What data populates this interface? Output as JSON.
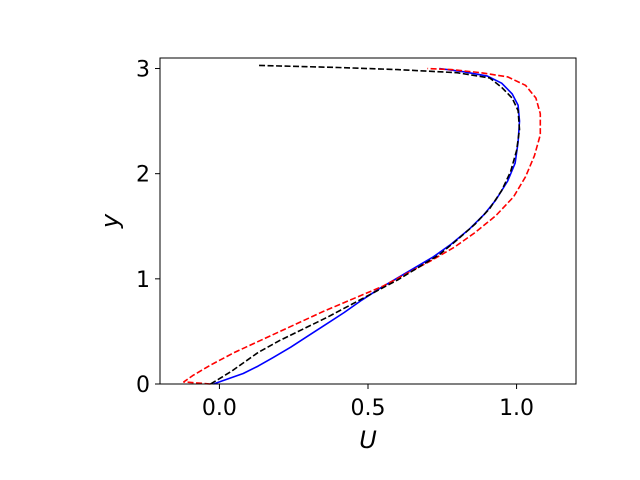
{
  "chart_data": {
    "type": "line",
    "title": "",
    "xlabel": "U",
    "ylabel": "y",
    "xlim": [
      -0.2,
      1.2
    ],
    "ylim": [
      0,
      3.1
    ],
    "grid": false,
    "legend": "none",
    "xticks": [
      {
        "value": 0.0,
        "label": "0.0"
      },
      {
        "value": 0.5,
        "label": "0.5"
      },
      {
        "value": 1.0,
        "label": "1.0"
      }
    ],
    "yticks": [
      {
        "value": 0,
        "label": "0"
      },
      {
        "value": 1,
        "label": "1"
      },
      {
        "value": 2,
        "label": "2"
      },
      {
        "value": 3,
        "label": "3"
      }
    ],
    "series": [
      {
        "color": "#0000ff",
        "dash": "solid",
        "points": [
          [
            -0.02,
            0.0
          ],
          [
            0.03,
            0.05
          ],
          [
            0.08,
            0.1
          ],
          [
            0.13,
            0.17
          ],
          [
            0.18,
            0.25
          ],
          [
            0.24,
            0.35
          ],
          [
            0.3,
            0.46
          ],
          [
            0.36,
            0.57
          ],
          [
            0.42,
            0.68
          ],
          [
            0.48,
            0.8
          ],
          [
            0.54,
            0.91
          ],
          [
            0.6,
            1.01
          ],
          [
            0.66,
            1.11
          ],
          [
            0.72,
            1.21
          ],
          [
            0.78,
            1.33
          ],
          [
            0.84,
            1.47
          ],
          [
            0.89,
            1.61
          ],
          [
            0.93,
            1.75
          ],
          [
            0.97,
            1.93
          ],
          [
            0.995,
            2.1
          ],
          [
            1.005,
            2.3
          ],
          [
            1.01,
            2.5
          ],
          [
            1.005,
            2.65
          ],
          [
            0.985,
            2.76
          ],
          [
            0.95,
            2.86
          ],
          [
            0.9,
            2.93
          ],
          [
            0.82,
            2.97
          ],
          [
            0.74,
            3.0
          ]
        ]
      },
      {
        "color": "#ff0000",
        "dash": "dashed",
        "points": [
          [
            -0.03,
            0.0
          ],
          [
            -0.12,
            0.02
          ],
          [
            -0.09,
            0.08
          ],
          [
            -0.03,
            0.18
          ],
          [
            0.05,
            0.3
          ],
          [
            0.15,
            0.43
          ],
          [
            0.25,
            0.56
          ],
          [
            0.35,
            0.69
          ],
          [
            0.45,
            0.81
          ],
          [
            0.55,
            0.93
          ],
          [
            0.63,
            1.05
          ],
          [
            0.71,
            1.17
          ],
          [
            0.79,
            1.3
          ],
          [
            0.86,
            1.44
          ],
          [
            0.93,
            1.6
          ],
          [
            0.99,
            1.78
          ],
          [
            1.03,
            1.97
          ],
          [
            1.06,
            2.17
          ],
          [
            1.08,
            2.37
          ],
          [
            1.08,
            2.57
          ],
          [
            1.065,
            2.72
          ],
          [
            1.03,
            2.84
          ],
          [
            0.97,
            2.92
          ],
          [
            0.88,
            2.96
          ],
          [
            0.78,
            2.99
          ],
          [
            0.7,
            3.0
          ]
        ]
      },
      {
        "color": "#000000",
        "dash": "dashed",
        "points": [
          [
            -0.03,
            0.0
          ],
          [
            0.0,
            0.05
          ],
          [
            0.04,
            0.12
          ],
          [
            0.08,
            0.2
          ],
          [
            0.13,
            0.3
          ],
          [
            0.2,
            0.41
          ],
          [
            0.28,
            0.52
          ],
          [
            0.36,
            0.63
          ],
          [
            0.44,
            0.75
          ],
          [
            0.52,
            0.87
          ],
          [
            0.6,
            0.99
          ],
          [
            0.67,
            1.11
          ],
          [
            0.74,
            1.23
          ],
          [
            0.8,
            1.37
          ],
          [
            0.86,
            1.52
          ],
          [
            0.91,
            1.67
          ],
          [
            0.95,
            1.84
          ],
          [
            0.98,
            2.02
          ],
          [
            1.0,
            2.22
          ],
          [
            1.01,
            2.42
          ],
          [
            1.005,
            2.6
          ],
          [
            0.985,
            2.72
          ],
          [
            0.95,
            2.82
          ],
          [
            0.91,
            2.91
          ],
          [
            0.8,
            2.96
          ],
          [
            0.6,
            2.99
          ],
          [
            0.4,
            3.01
          ],
          [
            0.13,
            3.03
          ]
        ]
      }
    ]
  }
}
